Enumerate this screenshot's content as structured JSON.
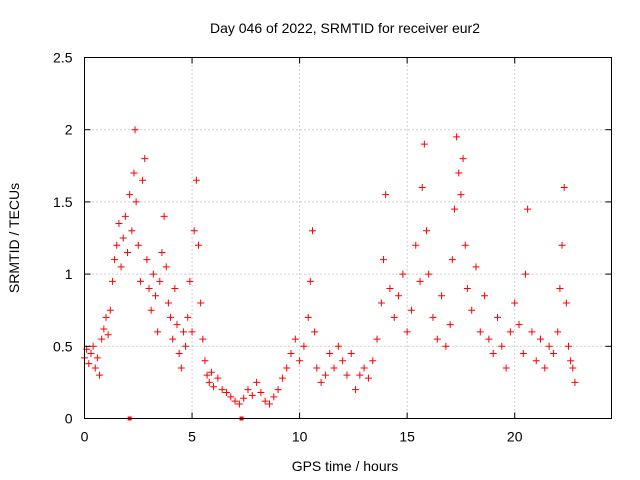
{
  "chart_data": {
    "type": "scatter",
    "title": "Day 046 of 2022, SRMTID for receiver eur2",
    "xlabel": "GPS time / hours",
    "ylabel": "SRMTID / TECUs",
    "xlim": [
      0,
      24.5
    ],
    "ylim": [
      0,
      2.5
    ],
    "xticks": [
      0,
      5,
      10,
      15,
      20
    ],
    "xtick_labels": [
      "0",
      "5",
      "10",
      "15",
      "20"
    ],
    "yticks": [
      0,
      0.5,
      1,
      1.5,
      2,
      2.5
    ],
    "ytick_labels": [
      "0",
      "0.5",
      "1",
      "1.5",
      "2",
      "2.5"
    ],
    "grid": true,
    "marker": "+",
    "color": "#ff0000",
    "series": [
      {
        "name": "SRMTID",
        "points": [
          [
            0.0,
            0.42
          ],
          [
            0.1,
            0.48
          ],
          [
            0.2,
            0.38
          ],
          [
            0.3,
            0.45
          ],
          [
            0.4,
            0.5
          ],
          [
            0.5,
            0.35
          ],
          [
            0.6,
            0.42
          ],
          [
            0.7,
            0.3
          ],
          [
            0.8,
            0.55
          ],
          [
            0.9,
            0.62
          ],
          [
            1.0,
            0.7
          ],
          [
            1.1,
            0.58
          ],
          [
            1.2,
            0.75
          ],
          [
            1.3,
            0.95
          ],
          [
            1.4,
            1.1
          ],
          [
            1.5,
            1.2
          ],
          [
            1.6,
            1.35
          ],
          [
            1.7,
            1.05
          ],
          [
            1.8,
            1.25
          ],
          [
            1.9,
            1.4
          ],
          [
            2.0,
            1.15
          ],
          [
            2.1,
            1.55
          ],
          [
            2.2,
            1.3
          ],
          [
            2.3,
            1.7
          ],
          [
            2.35,
            2.0
          ],
          [
            2.4,
            1.5
          ],
          [
            2.5,
            1.2
          ],
          [
            2.6,
            0.95
          ],
          [
            2.7,
            1.65
          ],
          [
            2.8,
            1.8
          ],
          [
            2.9,
            1.1
          ],
          [
            3.0,
            0.9
          ],
          [
            3.1,
            0.75
          ],
          [
            3.2,
            1.0
          ],
          [
            3.3,
            0.85
          ],
          [
            3.4,
            0.6
          ],
          [
            3.5,
            0.95
          ],
          [
            3.6,
            1.15
          ],
          [
            3.7,
            1.4
          ],
          [
            3.8,
            1.05
          ],
          [
            3.9,
            0.8
          ],
          [
            4.0,
            0.7
          ],
          [
            4.1,
            0.55
          ],
          [
            4.2,
            0.9
          ],
          [
            4.3,
            0.65
          ],
          [
            4.4,
            0.45
          ],
          [
            4.5,
            0.35
          ],
          [
            4.6,
            0.6
          ],
          [
            4.7,
            0.5
          ],
          [
            4.8,
            0.7
          ],
          [
            4.9,
            0.95
          ],
          [
            5.0,
            0.6
          ],
          [
            5.1,
            1.3
          ],
          [
            5.2,
            1.65
          ],
          [
            5.3,
            1.2
          ],
          [
            5.4,
            0.8
          ],
          [
            5.5,
            0.55
          ],
          [
            5.6,
            0.4
          ],
          [
            5.7,
            0.3
          ],
          [
            5.8,
            0.25
          ],
          [
            5.9,
            0.32
          ],
          [
            6.0,
            0.22
          ],
          [
            6.2,
            0.28
          ],
          [
            6.4,
            0.2
          ],
          [
            6.6,
            0.18
          ],
          [
            6.8,
            0.15
          ],
          [
            7.0,
            0.12
          ],
          [
            7.2,
            0.1
          ],
          [
            7.4,
            0.14
          ],
          [
            7.6,
            0.2
          ],
          [
            7.8,
            0.16
          ],
          [
            8.0,
            0.25
          ],
          [
            8.2,
            0.18
          ],
          [
            8.4,
            0.12
          ],
          [
            8.6,
            0.1
          ],
          [
            8.8,
            0.15
          ],
          [
            9.0,
            0.2
          ],
          [
            9.2,
            0.28
          ],
          [
            9.4,
            0.35
          ],
          [
            9.6,
            0.45
          ],
          [
            9.8,
            0.55
          ],
          [
            10.0,
            0.4
          ],
          [
            10.2,
            0.5
          ],
          [
            10.4,
            0.7
          ],
          [
            10.5,
            0.95
          ],
          [
            10.6,
            1.3
          ],
          [
            10.7,
            0.6
          ],
          [
            10.8,
            0.35
          ],
          [
            11.0,
            0.25
          ],
          [
            11.2,
            0.3
          ],
          [
            11.4,
            0.45
          ],
          [
            11.6,
            0.35
          ],
          [
            11.8,
            0.5
          ],
          [
            12.0,
            0.4
          ],
          [
            12.2,
            0.3
          ],
          [
            12.4,
            0.45
          ],
          [
            12.6,
            0.2
          ],
          [
            12.8,
            0.3
          ],
          [
            13.0,
            0.35
          ],
          [
            13.2,
            0.28
          ],
          [
            13.4,
            0.4
          ],
          [
            13.6,
            0.55
          ],
          [
            13.8,
            0.8
          ],
          [
            13.9,
            1.1
          ],
          [
            14.0,
            1.55
          ],
          [
            14.2,
            0.9
          ],
          [
            14.4,
            0.7
          ],
          [
            14.6,
            0.85
          ],
          [
            14.8,
            1.0
          ],
          [
            15.0,
            0.6
          ],
          [
            15.2,
            0.75
          ],
          [
            15.4,
            1.2
          ],
          [
            15.6,
            0.95
          ],
          [
            15.7,
            1.6
          ],
          [
            15.8,
            1.9
          ],
          [
            15.9,
            1.3
          ],
          [
            16.0,
            1.0
          ],
          [
            16.2,
            0.7
          ],
          [
            16.4,
            0.55
          ],
          [
            16.6,
            0.85
          ],
          [
            16.8,
            0.5
          ],
          [
            17.0,
            0.65
          ],
          [
            17.1,
            1.1
          ],
          [
            17.2,
            1.45
          ],
          [
            17.3,
            1.95
          ],
          [
            17.4,
            1.7
          ],
          [
            17.5,
            1.55
          ],
          [
            17.6,
            1.8
          ],
          [
            17.7,
            1.2
          ],
          [
            17.8,
            0.9
          ],
          [
            18.0,
            0.75
          ],
          [
            18.2,
            1.05
          ],
          [
            18.4,
            0.6
          ],
          [
            18.6,
            0.85
          ],
          [
            18.8,
            0.55
          ],
          [
            19.0,
            0.45
          ],
          [
            19.2,
            0.7
          ],
          [
            19.4,
            0.5
          ],
          [
            19.6,
            0.35
          ],
          [
            19.8,
            0.6
          ],
          [
            20.0,
            0.8
          ],
          [
            20.2,
            0.65
          ],
          [
            20.4,
            0.45
          ],
          [
            20.5,
            1.0
          ],
          [
            20.6,
            1.45
          ],
          [
            20.8,
            0.6
          ],
          [
            21.0,
            0.4
          ],
          [
            21.2,
            0.55
          ],
          [
            21.4,
            0.35
          ],
          [
            21.6,
            0.5
          ],
          [
            21.8,
            0.45
          ],
          [
            22.0,
            0.6
          ],
          [
            22.1,
            0.9
          ],
          [
            22.2,
            1.2
          ],
          [
            22.3,
            1.6
          ],
          [
            22.4,
            0.8
          ],
          [
            22.5,
            0.5
          ],
          [
            22.6,
            0.4
          ],
          [
            22.7,
            0.35
          ],
          [
            22.8,
            0.25
          ]
        ]
      }
    ],
    "markers_at_zero": [
      2.1,
      7.3
    ]
  }
}
